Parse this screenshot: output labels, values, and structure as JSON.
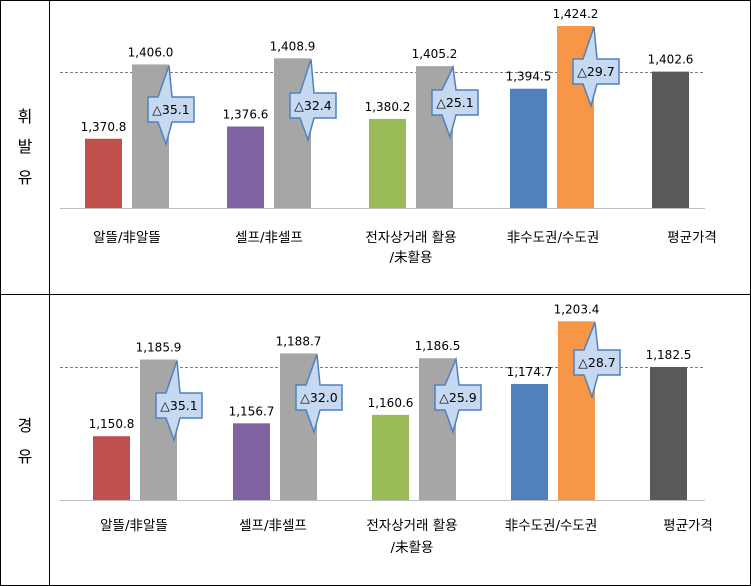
{
  "rows": [
    {
      "label_lines": [
        "휘",
        "발",
        "유"
      ]
    },
    {
      "label_lines": [
        "경",
        "유"
      ]
    }
  ],
  "chart_data": [
    {
      "type": "bar",
      "title": "",
      "categories": [
        {
          "lines": [
            "알뜰/非알뜰"
          ]
        },
        {
          "lines": [
            "셀프/非셀프"
          ]
        },
        {
          "lines": [
            "전자상거래 활용",
            "/未활용"
          ]
        },
        {
          "lines": [
            "非수도권/수도권"
          ]
        },
        {
          "lines": [
            "평균가격"
          ]
        }
      ],
      "groups": [
        {
          "values": [
            1370.8,
            1406.0
          ],
          "labels": [
            "1,370.8",
            "1,406.0"
          ],
          "colors": [
            "#C0504D",
            "#A6A6A6"
          ],
          "diff_label": "△35.1"
        },
        {
          "values": [
            1376.6,
            1408.9
          ],
          "labels": [
            "1,376.6",
            "1,408.9"
          ],
          "colors": [
            "#8064A2",
            "#A6A6A6"
          ],
          "diff_label": "△32.4"
        },
        {
          "values": [
            1380.2,
            1405.2
          ],
          "labels": [
            "1,380.2",
            "1,405.2"
          ],
          "colors": [
            "#9BBB59",
            "#A6A6A6"
          ],
          "diff_label": "△25.1"
        },
        {
          "values": [
            1394.5,
            1424.2
          ],
          "labels": [
            "1,394.5",
            "1,424.2"
          ],
          "colors": [
            "#4F81BD",
            "#F79646"
          ],
          "diff_label": "△29.7"
        },
        {
          "values": [
            1402.6
          ],
          "labels": [
            "1,402.6"
          ],
          "colors": [
            "#595959"
          ],
          "diff_label": ""
        }
      ],
      "reference_value": 1402.6,
      "ylim": [
        1338,
        1428
      ],
      "grid": false
    },
    {
      "type": "bar",
      "title": "",
      "categories": [
        {
          "lines": [
            "알뜰/非알뜰"
          ]
        },
        {
          "lines": [
            "셀프/非셀프"
          ]
        },
        {
          "lines": [
            "전자상거래 활용",
            "/未활용"
          ]
        },
        {
          "lines": [
            "非수도권/수도권"
          ]
        },
        {
          "lines": [
            "평균가격"
          ]
        }
      ],
      "groups": [
        {
          "values": [
            1150.8,
            1185.9
          ],
          "labels": [
            "1,150.8",
            "1,185.9"
          ],
          "colors": [
            "#C0504D",
            "#A6A6A6"
          ],
          "diff_label": "△35.1"
        },
        {
          "values": [
            1156.7,
            1188.7
          ],
          "labels": [
            "1,156.7",
            "1,188.7"
          ],
          "colors": [
            "#8064A2",
            "#A6A6A6"
          ],
          "diff_label": "△32.0"
        },
        {
          "values": [
            1160.6,
            1186.5
          ],
          "labels": [
            "1,160.6",
            "1,186.5"
          ],
          "colors": [
            "#9BBB59",
            "#A6A6A6"
          ],
          "diff_label": "△25.9"
        },
        {
          "values": [
            1174.7,
            1203.4
          ],
          "labels": [
            "1,174.7",
            "1,203.4"
          ],
          "colors": [
            "#4F81BD",
            "#F79646"
          ],
          "diff_label": "△28.7"
        },
        {
          "values": [
            1182.5
          ],
          "labels": [
            "1,182.5"
          ],
          "colors": [
            "#595959"
          ],
          "diff_label": ""
        }
      ],
      "reference_value": 1182.5,
      "ylim": [
        1121.6,
        1207.2
      ],
      "grid": false
    }
  ]
}
